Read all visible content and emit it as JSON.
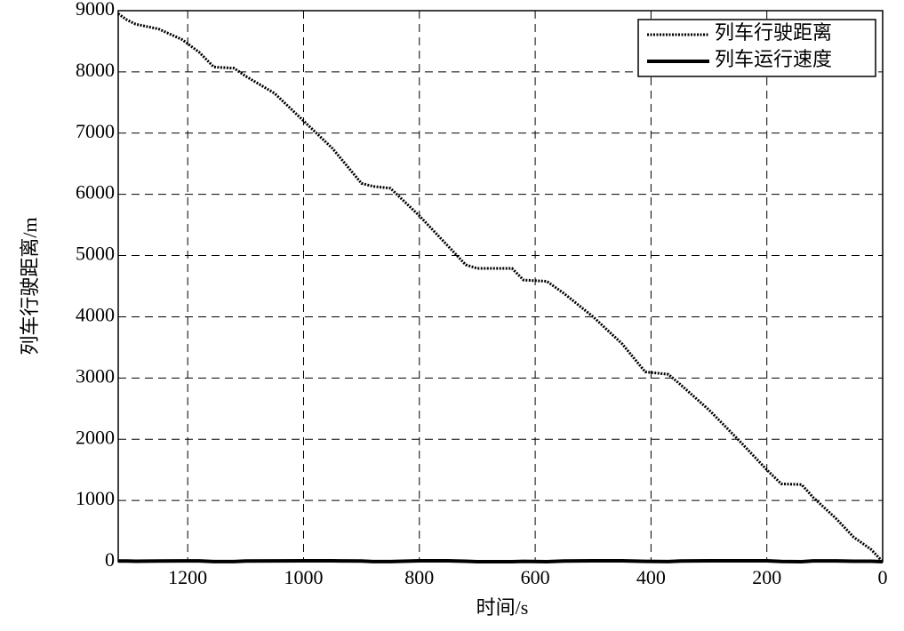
{
  "chart_data": {
    "type": "line",
    "xlabel": "时间/s",
    "ylabel": "列车行驶距离/m",
    "x": [
      1320,
      1305,
      1290,
      1250,
      1210,
      1180,
      1155,
      1120,
      1100,
      1050,
      1000,
      950,
      900,
      880,
      850,
      800,
      750,
      720,
      700,
      640,
      620,
      580,
      550,
      500,
      450,
      410,
      370,
      350,
      300,
      250,
      200,
      175,
      140,
      120,
      80,
      50,
      20,
      0
    ],
    "series": [
      {
        "name": "列车行驶距离",
        "color": "#000000",
        "style": "dotted",
        "values": [
          8950,
          8850,
          8780,
          8700,
          8530,
          8320,
          8080,
          8060,
          7930,
          7650,
          7200,
          6750,
          6180,
          6130,
          6100,
          5650,
          5150,
          4850,
          4790,
          4790,
          4600,
          4580,
          4380,
          4000,
          3560,
          3100,
          3060,
          2900,
          2480,
          2000,
          1500,
          1270,
          1260,
          1050,
          700,
          400,
          200,
          0
        ]
      },
      {
        "name": "列车运行速度",
        "color": "#000000",
        "style": "solid",
        "values": [
          10,
          10,
          8,
          10,
          12,
          12,
          2,
          2,
          10,
          12,
          14,
          14,
          10,
          2,
          2,
          14,
          14,
          8,
          0,
          0,
          5,
          0,
          10,
          14,
          14,
          5,
          2,
          10,
          14,
          14,
          14,
          3,
          0,
          12,
          12,
          8,
          8,
          0
        ]
      }
    ],
    "xlim": [
      1320,
      0
    ],
    "xticks": [
      1200,
      1000,
      800,
      600,
      400,
      200,
      0
    ],
    "ylim": [
      0,
      9000
    ],
    "yticks": [
      0,
      1000,
      2000,
      3000,
      4000,
      5000,
      6000,
      7000,
      8000,
      9000
    ],
    "grid": true,
    "legend": "upper right"
  }
}
